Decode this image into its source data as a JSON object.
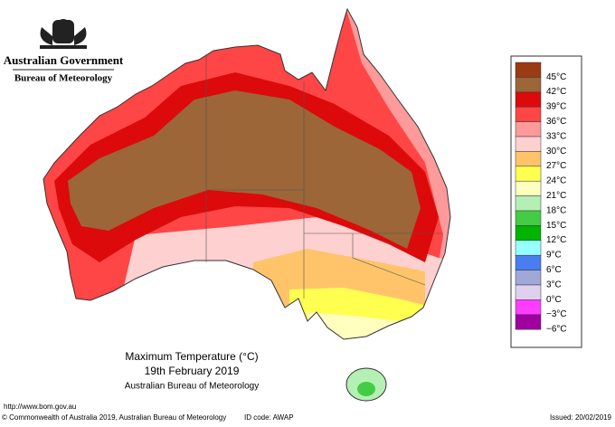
{
  "header": {
    "government": "Australian Government",
    "bureau": "Bureau of Meteorology"
  },
  "legend": {
    "items": [
      {
        "label": "45°C",
        "color": "#9a3b12"
      },
      {
        "label": "42°C",
        "color": "#9c6638"
      },
      {
        "label": "39°C",
        "color": "#dc0a0a"
      },
      {
        "label": "36°C",
        "color": "#ff4646"
      },
      {
        "label": "33°C",
        "color": "#ff9a9a"
      },
      {
        "label": "30°C",
        "color": "#ffd0d0"
      },
      {
        "label": "27°C",
        "color": "#ffc46a"
      },
      {
        "label": "24°C",
        "color": "#ffff50"
      },
      {
        "label": "21°C",
        "color": "#ffffbe"
      },
      {
        "label": "18°C",
        "color": "#b4f0b4"
      },
      {
        "label": "15°C",
        "color": "#44cc44"
      },
      {
        "label": "12°C",
        "color": "#00b400"
      },
      {
        "label": "9°C",
        "color": "#96ffff"
      },
      {
        "label": "6°C",
        "color": "#4a7ef0"
      },
      {
        "label": "3°C",
        "color": "#a0a8d8"
      },
      {
        "label": "0°C",
        "color": "#e0d0f0"
      },
      {
        "label": "−3°C",
        "color": "#ff3cff"
      },
      {
        "label": "−6°C",
        "color": "#a000a0"
      }
    ]
  },
  "title": {
    "line1": "Maximum Temperature (°C)",
    "line2": "19th February 2019",
    "line3": "Australian Bureau of Meteorology"
  },
  "footer": {
    "url": "http://www.bom.gov.au",
    "copyright": "© Commonwealth of Australia 2019, Australian Bureau of Meteorology",
    "id_code": "ID code: AWAP",
    "issued": "Issued: 20/02/2019"
  }
}
